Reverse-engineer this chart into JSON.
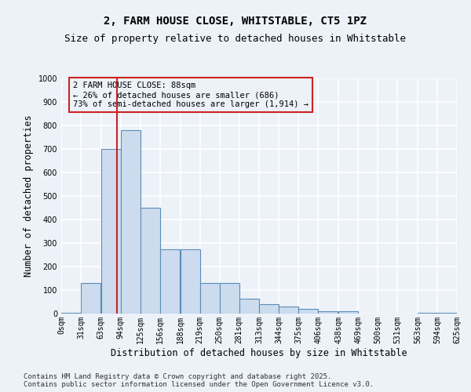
{
  "title_line1": "2, FARM HOUSE CLOSE, WHITSTABLE, CT5 1PZ",
  "title_line2": "Size of property relative to detached houses in Whitstable",
  "xlabel": "Distribution of detached houses by size in Whitstable",
  "ylabel": "Number of detached properties",
  "bar_color": "#ccdcee",
  "bar_edge_color": "#5b8db8",
  "bins_left": [
    0,
    31,
    63,
    94,
    125,
    156,
    188,
    219,
    250,
    281,
    313,
    344,
    375,
    406,
    438,
    469,
    500,
    531,
    563,
    594
  ],
  "bin_width": 31,
  "tick_labels": [
    "0sqm",
    "31sqm",
    "63sqm",
    "94sqm",
    "125sqm",
    "156sqm",
    "188sqm",
    "219sqm",
    "250sqm",
    "281sqm",
    "313sqm",
    "344sqm",
    "375sqm",
    "406sqm",
    "438sqm",
    "469sqm",
    "500sqm",
    "531sqm",
    "563sqm",
    "594sqm",
    "625sqm"
  ],
  "values": [
    5,
    130,
    700,
    780,
    450,
    275,
    275,
    130,
    130,
    65,
    40,
    30,
    20,
    10,
    10,
    0,
    0,
    0,
    5,
    5
  ],
  "ylim": [
    0,
    1000
  ],
  "xlim": [
    0,
    625
  ],
  "yticks": [
    0,
    100,
    200,
    300,
    400,
    500,
    600,
    700,
    800,
    900,
    1000
  ],
  "vline_x": 88,
  "vline_color": "#cc2222",
  "annotation_text_line1": "2 FARM HOUSE CLOSE: 88sqm",
  "annotation_text_line2": "← 26% of detached houses are smaller (686)",
  "annotation_text_line3": "73% of semi-detached houses are larger (1,914) →",
  "annotation_box_color": "#cc2222",
  "background_color": "#edf2f9",
  "grid_color": "#ffffff",
  "title_fontsize": 10,
  "subtitle_fontsize": 9,
  "axis_label_fontsize": 8.5,
  "tick_fontsize": 7,
  "annotation_fontsize": 7.5,
  "footer_fontsize": 6.5,
  "footer_line1": "Contains HM Land Registry data © Crown copyright and database right 2025.",
  "footer_line2": "Contains public sector information licensed under the Open Government Licence v3.0."
}
